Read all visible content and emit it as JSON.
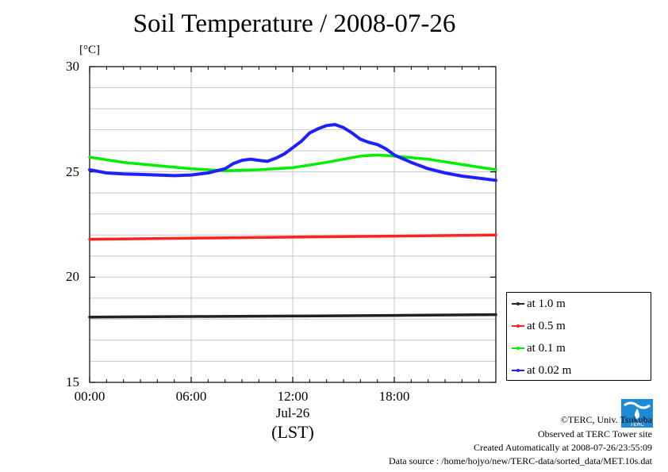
{
  "chart_data": {
    "type": "line",
    "title": "Soil Temperature / 2008-07-26",
    "ylabel": "[°C]",
    "xlabel": "(LST)",
    "x_date_label": "Jul-26",
    "xlim": [
      0,
      24
    ],
    "ylim": [
      15,
      30
    ],
    "x_ticks": [
      0,
      6,
      12,
      18
    ],
    "x_tick_labels": [
      "00:00",
      "06:00",
      "12:00",
      "18:00"
    ],
    "y_ticks": [
      15,
      20,
      25,
      30
    ],
    "y_tick_labels": [
      "15",
      "20",
      "25",
      "30"
    ],
    "minor_y_step": 1,
    "grid": true,
    "legend_position": "right",
    "series": [
      {
        "name": "at 1.0 m",
        "color": "#222222",
        "x": [
          0,
          6,
          12,
          18,
          24
        ],
        "values": [
          18.1,
          18.13,
          18.15,
          18.18,
          18.22
        ]
      },
      {
        "name": "at 0.5 m",
        "color": "#ff2020",
        "x": [
          0,
          6,
          12,
          18,
          24
        ],
        "values": [
          21.8,
          21.85,
          21.9,
          21.95,
          22.0
        ]
      },
      {
        "name": "at 0.1 m",
        "color": "#00ee00",
        "x": [
          0,
          2,
          4,
          6,
          8,
          10,
          12,
          14,
          15,
          16,
          17,
          18,
          20,
          22,
          24
        ],
        "values": [
          25.7,
          25.45,
          25.3,
          25.15,
          25.05,
          25.1,
          25.2,
          25.45,
          25.6,
          25.75,
          25.8,
          25.75,
          25.6,
          25.35,
          25.1
        ]
      },
      {
        "name": "at 0.02 m",
        "color": "#2020ff",
        "x": [
          0,
          1,
          2,
          3,
          4,
          5,
          6,
          7,
          8,
          8.5,
          9,
          9.5,
          10,
          10.5,
          11,
          11.5,
          12,
          12.5,
          13,
          13.5,
          14,
          14.5,
          15,
          15.5,
          16,
          16.5,
          17,
          17.5,
          18,
          19,
          20,
          21,
          22,
          23,
          24
        ],
        "values": [
          25.1,
          24.95,
          24.9,
          24.88,
          24.85,
          24.82,
          24.85,
          24.95,
          25.15,
          25.4,
          25.55,
          25.6,
          25.55,
          25.5,
          25.65,
          25.85,
          26.15,
          26.45,
          26.85,
          27.05,
          27.2,
          27.25,
          27.1,
          26.85,
          26.55,
          26.4,
          26.3,
          26.1,
          25.8,
          25.45,
          25.15,
          24.95,
          24.8,
          24.7,
          24.6
        ]
      }
    ]
  },
  "footer": {
    "copyright": "©TERC, Univ. Tsukuba",
    "site": "Observed at TERC Tower site",
    "created": "Created Automatically at 2008-07-26/23:55:09",
    "source": "Data source : /home/hojyo/new/TERC-data/sorted_data/MET.10s.dat"
  },
  "logo": {
    "text": "TERC",
    "color": "#1e8ad6"
  }
}
